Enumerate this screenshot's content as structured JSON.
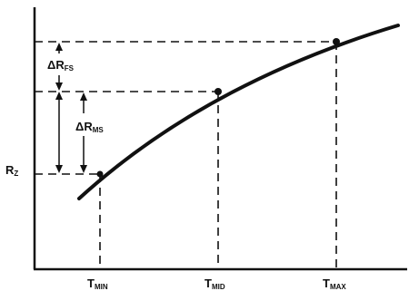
{
  "diagram": {
    "labels": {
      "delta_r_fs": {
        "prefix": "ΔR",
        "sub": "FS"
      },
      "delta_r_ms": {
        "prefix": "ΔR",
        "sub": "MS"
      },
      "r_z": {
        "prefix": "R",
        "sub": "Z"
      },
      "t_min": {
        "prefix": "T",
        "sub": "MIN"
      },
      "t_mid": {
        "prefix": "T",
        "sub": "MID"
      },
      "t_max": {
        "prefix": "T",
        "sub": "MAX"
      }
    },
    "colors": {
      "ink": "#111111",
      "background": "#ffffff"
    }
  }
}
